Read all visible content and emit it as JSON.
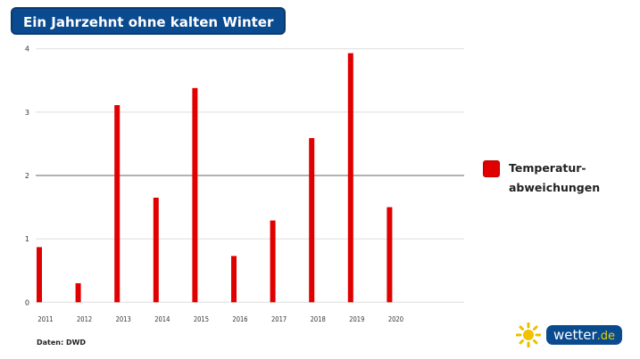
{
  "title": "Ein Jahrzehnt ohne kalten Winter",
  "source": "Daten: DWD",
  "logo": {
    "main": "wetter",
    "tld": ".de"
  },
  "colors": {
    "bar": "#e00000",
    "title_bg": "#0a4a8f"
  },
  "chart_data": {
    "type": "bar",
    "categories": [
      "2011",
      "2012",
      "2013",
      "2014",
      "2015",
      "2016",
      "2017",
      "2018",
      "2019",
      "2020"
    ],
    "series": [
      {
        "name": "Temperatur-abweichungen",
        "values": [
          0.87,
          0.3,
          3.11,
          1.65,
          3.38,
          0.73,
          1.29,
          2.59,
          3.93,
          1.5
        ]
      }
    ],
    "legend": {
      "label_line1": "Temperatur-",
      "label_line2": "abweichungen",
      "placement": "right"
    },
    "yticks": [
      "0",
      "1",
      "2",
      "3",
      "4"
    ],
    "ylim": [
      0,
      4
    ],
    "grid": true
  }
}
